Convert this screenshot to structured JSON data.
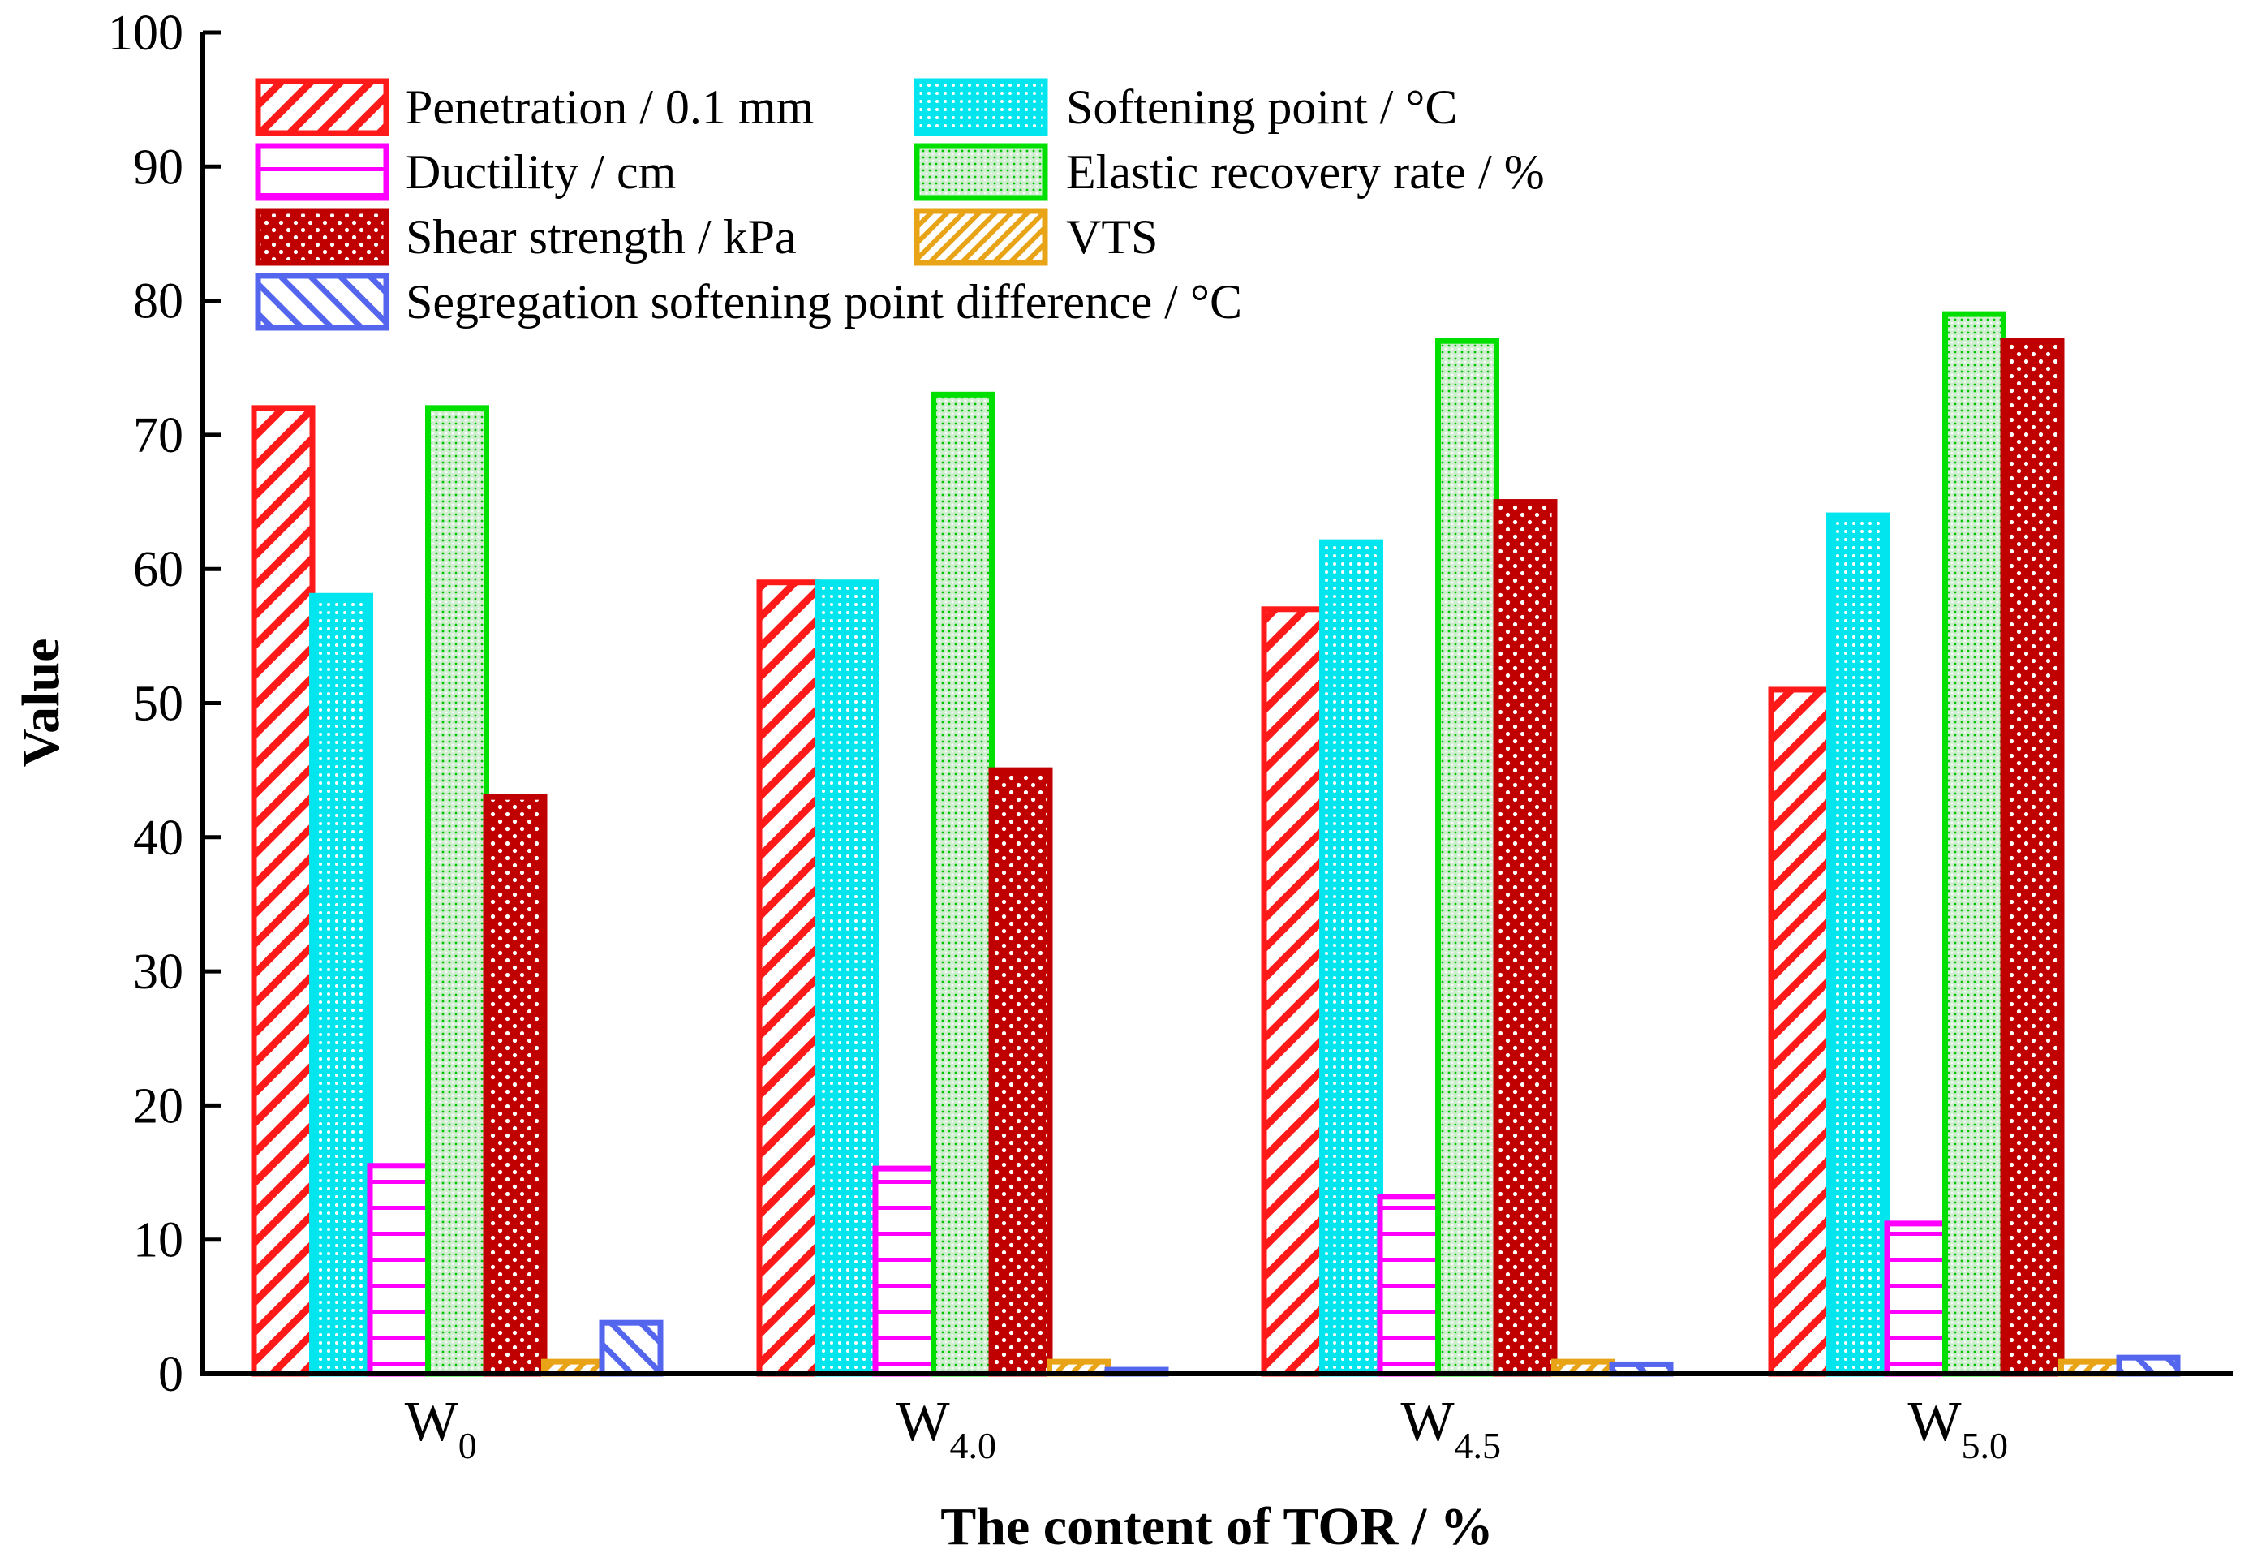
{
  "chart_data": {
    "type": "bar",
    "title": "",
    "xlabel": "The content of TOR / %",
    "ylabel": "Value",
    "ylim": [
      0,
      100
    ],
    "yticks": [
      0,
      10,
      20,
      30,
      40,
      50,
      60,
      70,
      80,
      90,
      100
    ],
    "grid": false,
    "legend_position": "top-left",
    "categories": [
      {
        "main": "W",
        "sub": "0"
      },
      {
        "main": "W",
        "sub": "4.0"
      },
      {
        "main": "W",
        "sub": "4.5"
      },
      {
        "main": "W",
        "sub": "5.0"
      }
    ],
    "series": [
      {
        "name": "Penetration / 0.1 mm",
        "color": "#ff1a1a",
        "pattern": "diag-right",
        "values": [
          72,
          59,
          57,
          51
        ]
      },
      {
        "name": "Softening point / °C",
        "color": "#00e5ee",
        "pattern": "dots",
        "values": [
          58,
          59,
          62,
          64
        ]
      },
      {
        "name": "Ductility / cm",
        "color": "#ff00ff",
        "pattern": "horizontal",
        "values": [
          15.5,
          15.3,
          13.2,
          11.2
        ]
      },
      {
        "name": "Elastic recovery rate / %",
        "color": "#00e000",
        "pattern": "fine-dots",
        "values": [
          72,
          73,
          77,
          79
        ]
      },
      {
        "name": "Shear strength / kPa",
        "color": "#c00000",
        "pattern": "crosshatch-dots",
        "values": [
          43,
          45,
          65,
          77
        ]
      },
      {
        "name": "VTS",
        "color": "#e8a317",
        "pattern": "diag-right-dense",
        "values": [
          0.9,
          0.9,
          0.9,
          0.9
        ]
      },
      {
        "name": "Segregation softening point difference / °C",
        "color": "#5566ee",
        "pattern": "diag-left",
        "values": [
          3.8,
          0.3,
          0.7,
          1.2
        ]
      }
    ]
  }
}
